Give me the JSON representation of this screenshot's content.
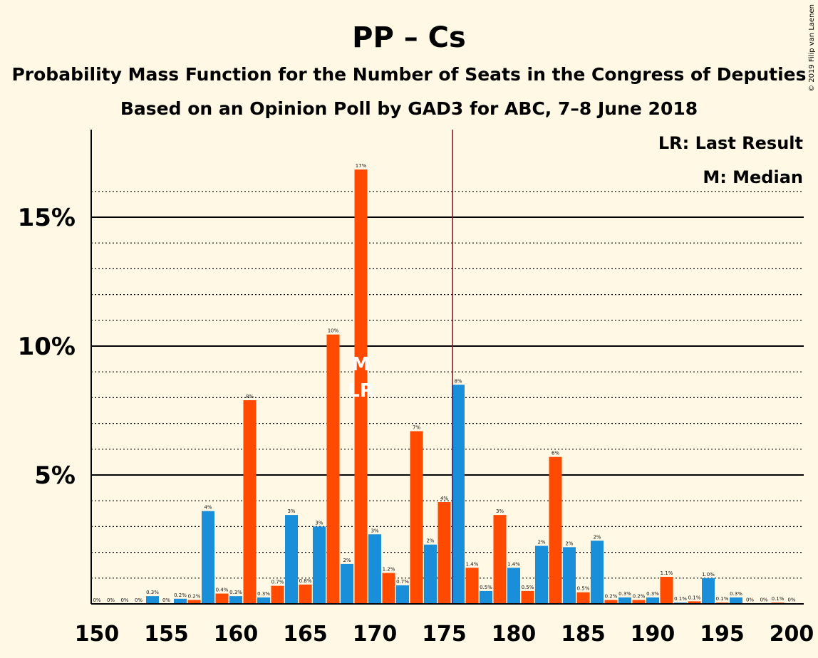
{
  "title": "PP – Cs",
  "subtitle": "Probability Mass Function for the Number of Seats in the Congress of Deputies",
  "subtitle2": "Based on an Opinion Poll by GAD3 for ABC, 7–8 June 2018",
  "copyright": "© 2019 Filip van Laenen",
  "legend": {
    "lr": "LR: Last Result",
    "m": "M: Median"
  },
  "markers": {
    "median_label": "M",
    "last_result_label": "LR",
    "median_seat": 169,
    "last_result_seat": 169,
    "majority_line_seat": 176
  },
  "colors": {
    "blue": "#1a8fd9",
    "orange": "#ff4a00",
    "majority": "#b00020",
    "background": "#fff8e5"
  },
  "chart_data": {
    "type": "bar",
    "xlabel": "",
    "ylabel": "",
    "xlim": [
      150,
      200
    ],
    "ylim": [
      0,
      18
    ],
    "x_ticks": [
      150,
      155,
      160,
      165,
      170,
      175,
      180,
      185,
      190,
      195,
      200
    ],
    "y_ticks": [
      5,
      10,
      15
    ],
    "y_tick_labels": [
      "5%",
      "10%",
      "15%"
    ],
    "x": [
      150,
      151,
      152,
      153,
      154,
      155,
      156,
      157,
      158,
      159,
      160,
      161,
      162,
      163,
      164,
      165,
      166,
      167,
      168,
      169,
      170,
      171,
      172,
      173,
      174,
      175,
      176,
      177,
      178,
      179,
      180,
      181,
      182,
      183,
      184,
      185,
      186,
      187,
      188,
      189,
      190,
      191,
      192,
      193,
      194,
      195,
      196,
      197,
      198,
      199,
      200
    ],
    "values": [
      0,
      0,
      0,
      0,
      0.3,
      0,
      0.2,
      0.15,
      3.6,
      0.4,
      0.3,
      7.9,
      0.25,
      0.7,
      3.45,
      0.75,
      3.0,
      10.45,
      1.55,
      16.85,
      2.7,
      1.2,
      0.72,
      6.7,
      2.3,
      3.95,
      8.5,
      1.4,
      0.5,
      3.45,
      1.4,
      0.5,
      2.25,
      5.7,
      2.2,
      0.45,
      2.45,
      0.15,
      0.25,
      0.15,
      0.25,
      1.05,
      0.05,
      0.1,
      1.0,
      0.05,
      0.25,
      0.02,
      0.02,
      0.05,
      0.02
    ],
    "labels": [
      "0%",
      "0%",
      "0%",
      "0%",
      "0.3%",
      "0%",
      "0.2%",
      "0.2%",
      "4%",
      "0.4%",
      "0.3%",
      "8%",
      "0.3%",
      "0.7%",
      "3%",
      "0.8%",
      "3%",
      "10%",
      "2%",
      "17%",
      "3%",
      "1.2%",
      "0.7%",
      "7%",
      "2%",
      "4%",
      "8%",
      "1.4%",
      "0.5%",
      "3%",
      "1.4%",
      "0.5%",
      "2%",
      "6%",
      "2%",
      "0.5%",
      "2%",
      "0.2%",
      "0.3%",
      "0.2%",
      "0.3%",
      "1.1%",
      "0.1%",
      "0.1%",
      "1.0%",
      "0.1%",
      "0.3%",
      "0%",
      "0%",
      "0.1%",
      "0%"
    ]
  }
}
